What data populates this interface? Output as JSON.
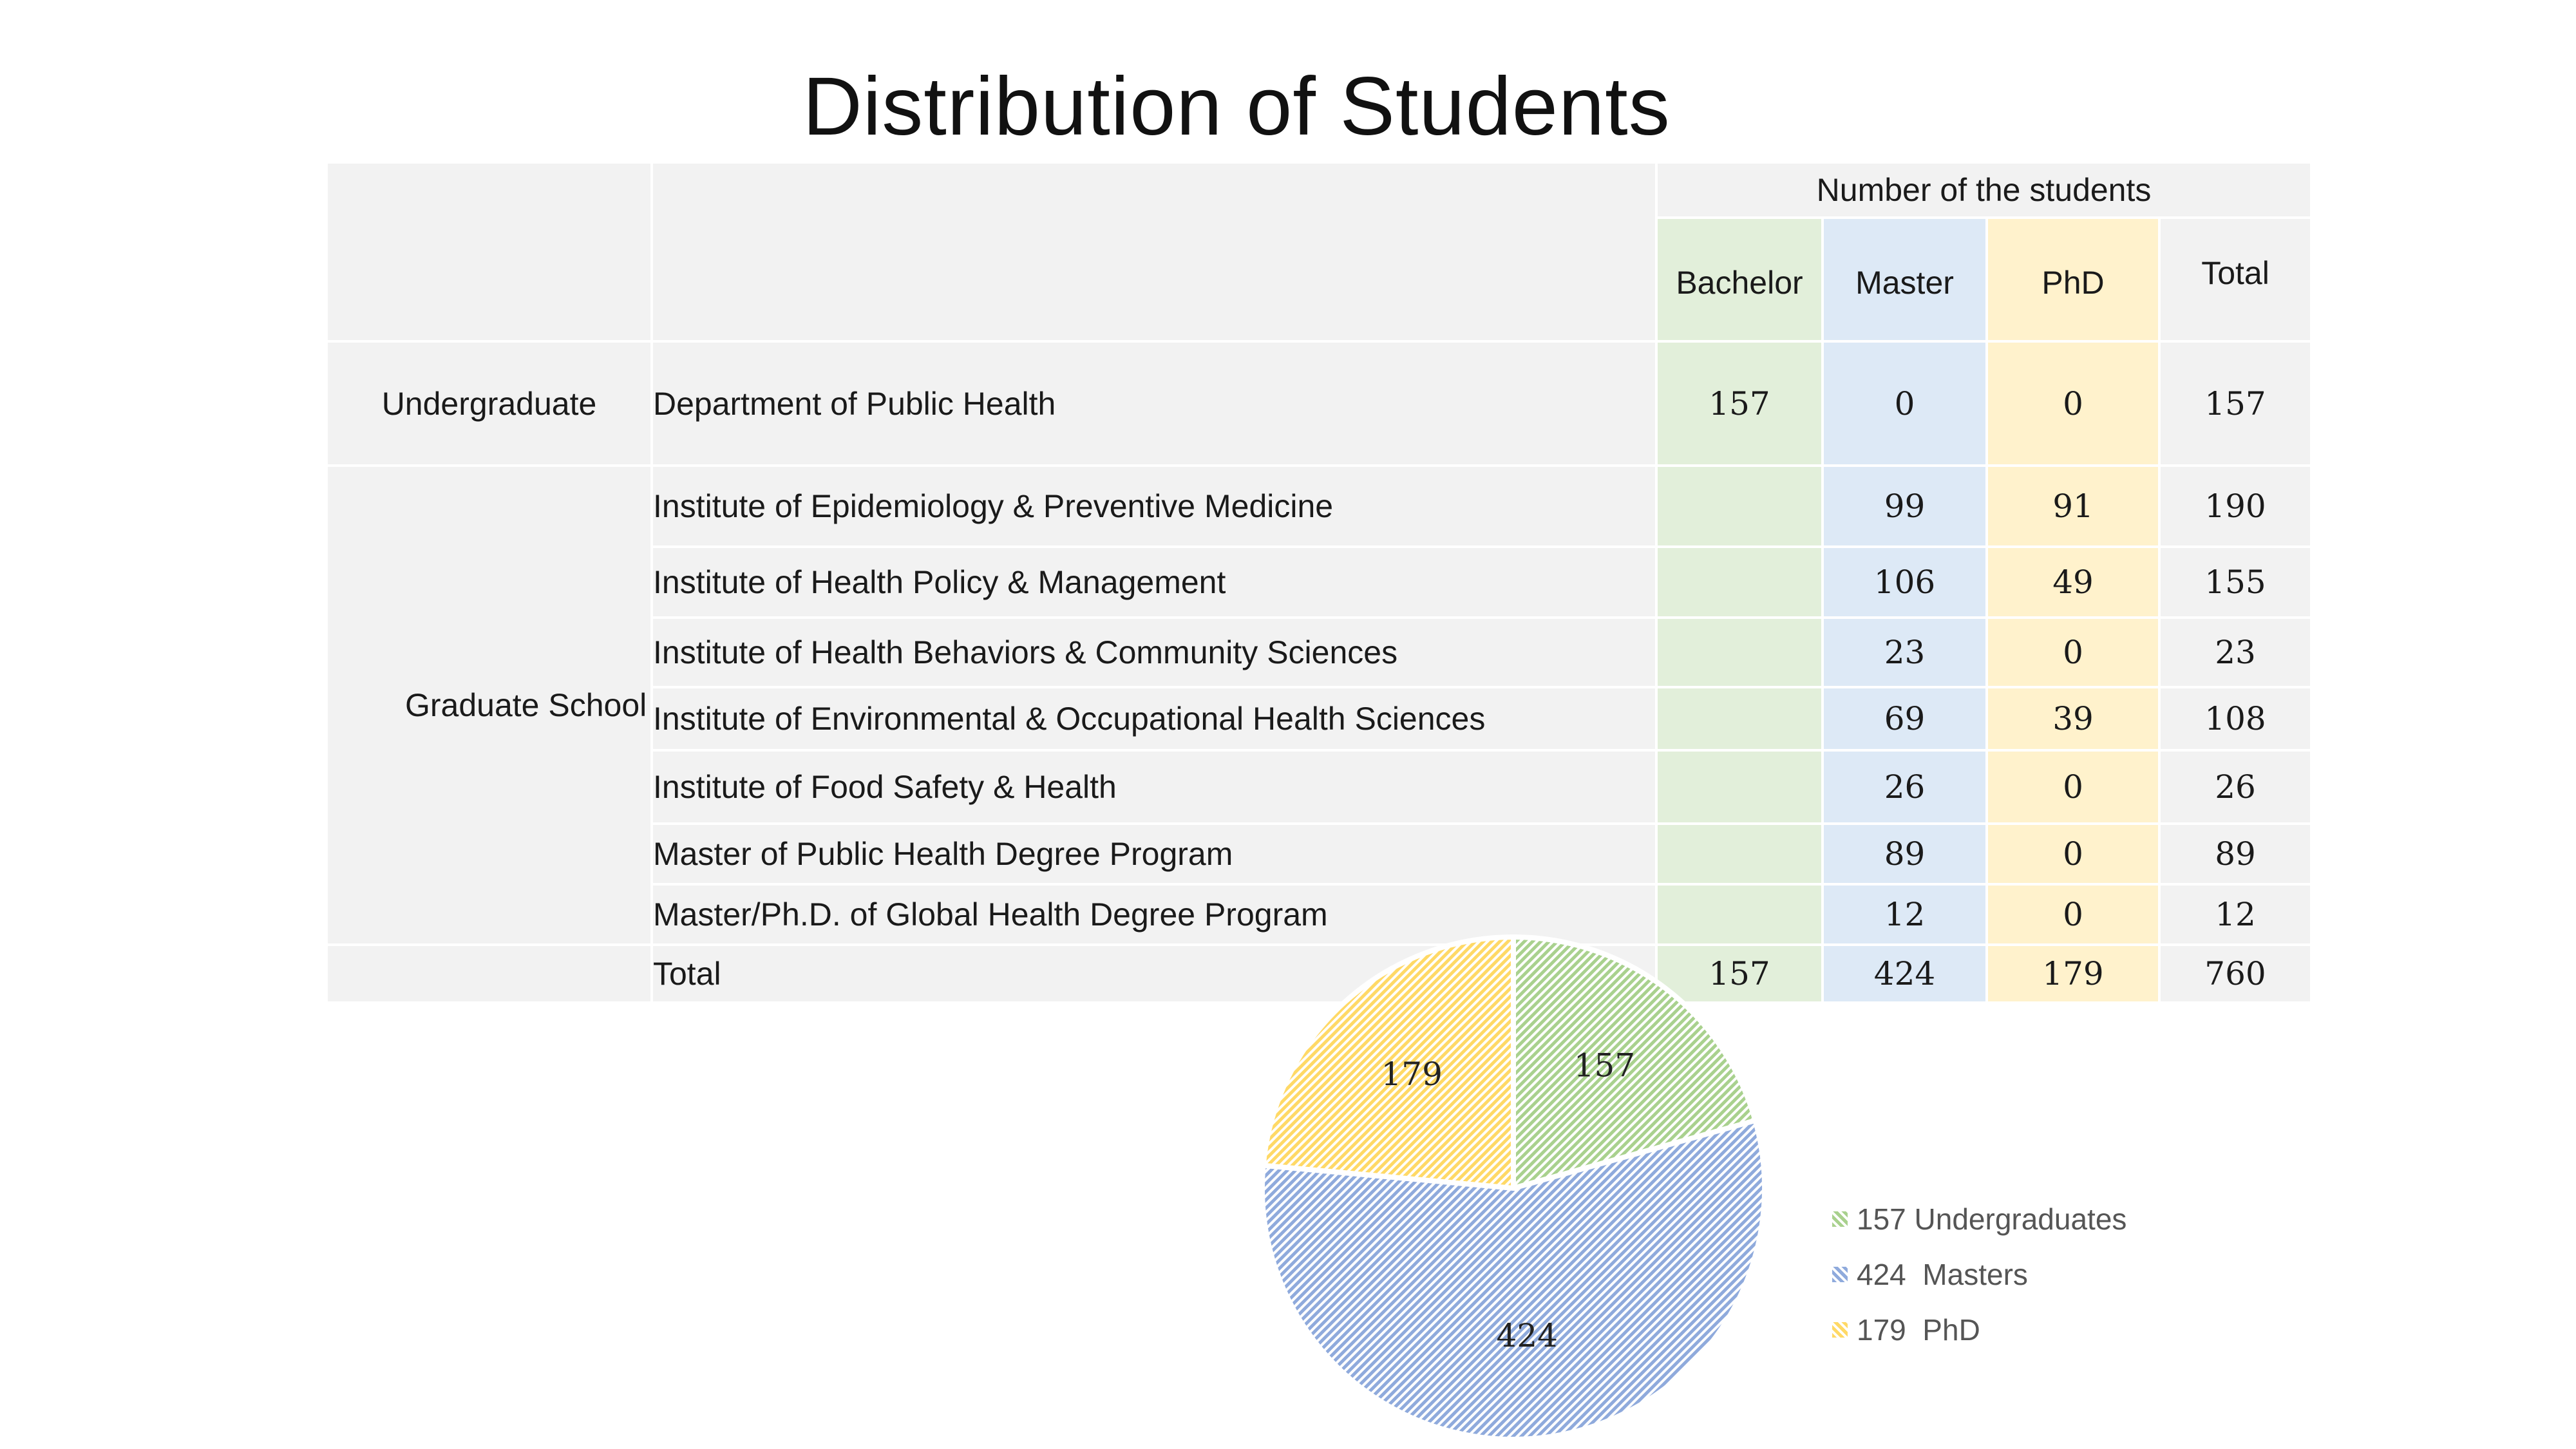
{
  "title": "Distribution of Students",
  "table": {
    "group_header": "Number of the students",
    "columns": [
      "Bachelor",
      "Master",
      "PhD",
      "Total"
    ],
    "undergraduate": {
      "label": "Undergraduate",
      "rows": [
        {
          "dept": "Department of Public Health",
          "bachelor": "157",
          "master": "0",
          "phd": "0",
          "total": "157"
        }
      ]
    },
    "graduate": {
      "label": "Graduate School",
      "rows": [
        {
          "dept": "Institute of Epidemiology & Preventive Medicine",
          "bachelor": "",
          "master": "99",
          "phd": "91",
          "total": "190"
        },
        {
          "dept": "Institute of Health Policy & Management",
          "bachelor": "",
          "master": "106",
          "phd": "49",
          "total": "155"
        },
        {
          "dept": "Institute of Health Behaviors & Community Sciences",
          "bachelor": "",
          "master": "23",
          "phd": "0",
          "total": "23"
        },
        {
          "dept": "Institute of Environmental & Occupational Health Sciences",
          "bachelor": "",
          "master": "69",
          "phd": "39",
          "total": "108"
        },
        {
          "dept": "Institute of Food Safety & Health",
          "bachelor": "",
          "master": "26",
          "phd": "0",
          "total": "26"
        },
        {
          "dept": "Master of Public Health Degree Program",
          "bachelor": "",
          "master": "89",
          "phd": "0",
          "total": "89"
        },
        {
          "dept": "Master/Ph.D. of Global Health Degree Program",
          "bachelor": "",
          "master": "12",
          "phd": "0",
          "total": "12"
        }
      ]
    },
    "total_row": {
      "label": "Total",
      "bachelor": "157",
      "master": "424",
      "phd": "179",
      "total": "760"
    }
  },
  "colors": {
    "bachelor_bg": "#e2efda",
    "master_bg": "#dde9f6",
    "phd_bg": "#fff2cc",
    "undergrad_slice": "#a9d18e",
    "masters_slice": "#8faadc",
    "phd_slice": "#ffd966"
  },
  "chart_data": {
    "type": "pie",
    "categories": [
      "Undergraduates",
      "Masters",
      "PhD"
    ],
    "values": [
      157,
      424,
      179
    ],
    "slice_labels": [
      "157",
      "424",
      "179"
    ],
    "legend": [
      "157 Undergraduates",
      "424  Masters",
      "179  PhD"
    ],
    "legend_position": "right",
    "colors": [
      "#a9d18e",
      "#8faadc",
      "#ffd966"
    ],
    "pattern": "diagonal-hatch"
  }
}
